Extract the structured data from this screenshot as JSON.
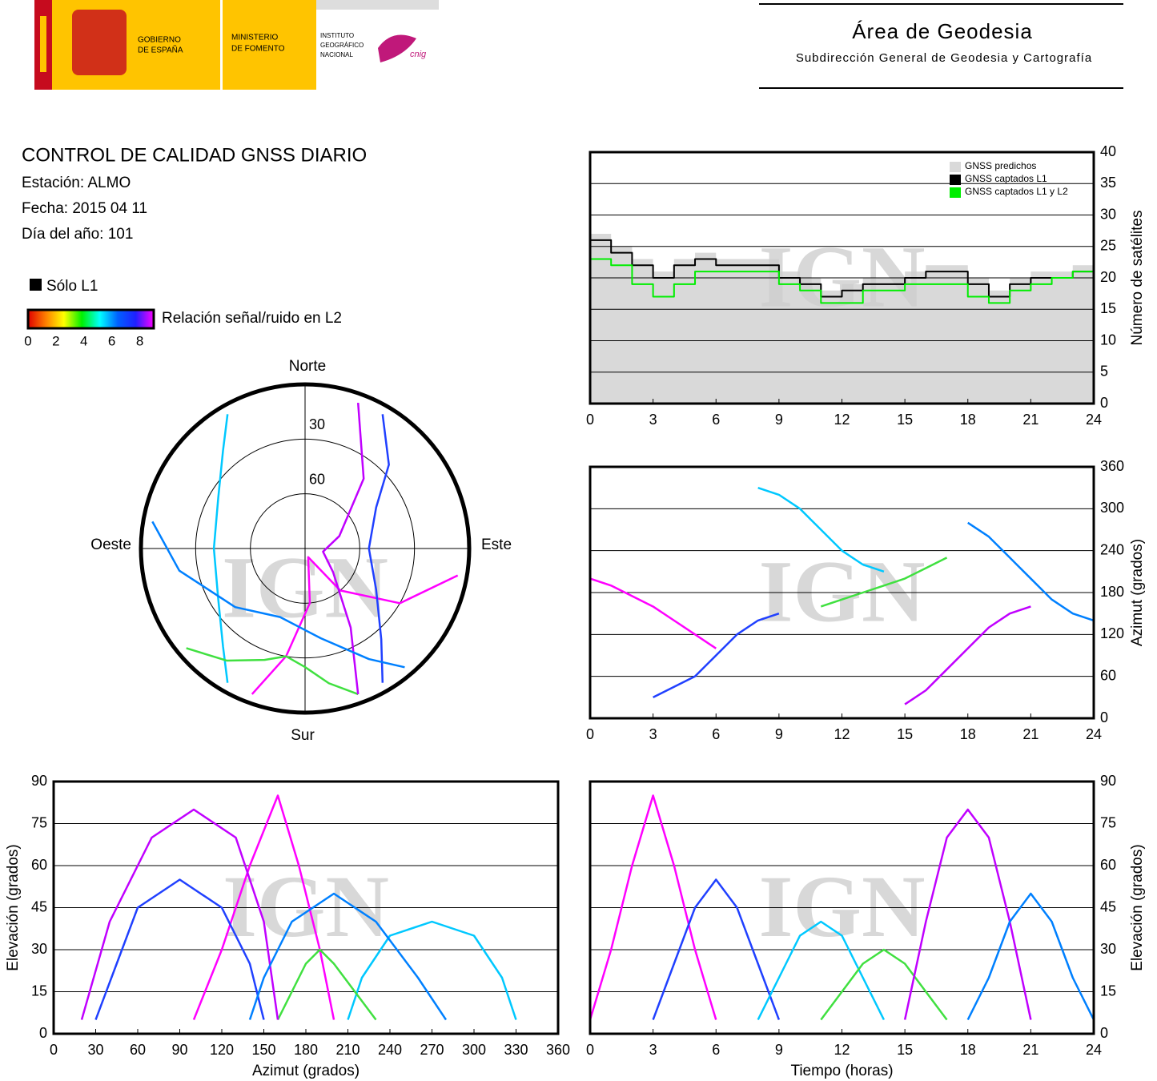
{
  "header": {
    "gobierno": [
      "GOBIERNO",
      "DE ESPAÑA"
    ],
    "ministerio": [
      "MINISTERIO",
      "DE FOMENTO"
    ],
    "instituto": [
      "INSTITUTO",
      "GEOGRÁFICO",
      "NACIONAL"
    ],
    "cnig": "cnig",
    "area": "Área de Geodesia",
    "subdireccion": "Subdirección General de Geodesia y Cartografía"
  },
  "report": {
    "title": "CONTROL DE CALIDAD GNSS DIARIO",
    "lines": [
      "Estación: ALMO",
      "Fecha: 2015 04 11",
      "Día del año: 101"
    ]
  },
  "legend": {
    "solo_l1": "Sólo L1",
    "solo_color": "#000000",
    "snr_label": "Relación señal/ruido en L2",
    "clim": [
      0,
      9
    ],
    "ticks": [
      0,
      2,
      4,
      6,
      8
    ],
    "colors": [
      "#e00000",
      "#ff8000",
      "#ffff00",
      "#00f000",
      "#00ffff",
      "#0060ff",
      "#2020ff",
      "#ff00ff"
    ]
  },
  "watermark": "IGN",
  "chart_data": [
    {
      "type": "line",
      "step": true,
      "grid": true,
      "yaxis_side": "right",
      "legend": "top-right",
      "ylabel": "Número de satélites",
      "xlim": [
        0,
        24
      ],
      "xticks": [
        0,
        3,
        6,
        9,
        12,
        15,
        18,
        21,
        24
      ],
      "ylim": [
        0,
        40
      ],
      "yticks": [
        0,
        5,
        10,
        15,
        20,
        25,
        30,
        35,
        40
      ],
      "x": [
        0,
        1,
        2,
        3,
        4,
        5,
        6,
        7,
        8,
        9,
        10,
        11,
        12,
        13,
        14,
        15,
        16,
        17,
        18,
        19,
        20,
        21,
        22,
        23,
        24
      ],
      "series": [
        {
          "name": "GNSS predichos",
          "color": "#d9d9d9",
          "fill": true,
          "values": [
            27,
            25,
            23,
            21,
            23,
            24,
            23,
            23,
            23,
            21,
            20,
            18,
            19,
            20,
            20,
            21,
            22,
            22,
            20,
            18,
            20,
            21,
            21,
            22,
            23
          ]
        },
        {
          "name": "GNSS captados L1",
          "color": "#000000",
          "values": [
            26,
            24,
            22,
            20,
            22,
            23,
            22,
            22,
            22,
            20,
            19,
            17,
            18,
            19,
            19,
            20,
            21,
            21,
            19,
            17,
            19,
            20,
            20,
            21,
            22
          ]
        },
        {
          "name": "GNSS captados L1 y L2",
          "color": "#00ee00",
          "values": [
            23,
            22,
            19,
            17,
            19,
            21,
            21,
            21,
            21,
            19,
            18,
            16,
            16,
            18,
            18,
            19,
            19,
            19,
            17,
            16,
            18,
            19,
            20,
            21,
            22
          ]
        }
      ]
    },
    {
      "type": "line",
      "grid": true,
      "yaxis_side": "right",
      "ylabel": "Azimut (grados)",
      "xlim": [
        0,
        24
      ],
      "xticks": [
        0,
        3,
        6,
        9,
        12,
        15,
        18,
        21,
        24
      ],
      "ylim": [
        0,
        360
      ],
      "yticks": [
        0,
        60,
        120,
        180,
        240,
        300,
        360
      ],
      "series": [
        {
          "color": "#ff00ff",
          "x": [
            0,
            1,
            2,
            3,
            4,
            5,
            6
          ],
          "values": [
            200,
            190,
            175,
            160,
            140,
            120,
            100
          ]
        },
        {
          "color": "#2040ff",
          "x": [
            3,
            4,
            5,
            6,
            7,
            8,
            9
          ],
          "values": [
            30,
            45,
            60,
            90,
            120,
            140,
            150
          ]
        },
        {
          "color": "#00c8ff",
          "x": [
            8,
            9,
            10,
            11,
            12,
            13,
            14
          ],
          "values": [
            330,
            320,
            300,
            270,
            240,
            220,
            210
          ]
        },
        {
          "color": "#40e040",
          "x": [
            11,
            12,
            13,
            14,
            15,
            16,
            17
          ],
          "values": [
            160,
            170,
            180,
            190,
            200,
            215,
            230
          ]
        },
        {
          "color": "#c000ff",
          "x": [
            15,
            16,
            17,
            18,
            19,
            20,
            21
          ],
          "values": [
            20,
            40,
            70,
            100,
            130,
            150,
            160
          ]
        },
        {
          "color": "#0080ff",
          "x": [
            18,
            19,
            20,
            21,
            22,
            23,
            24
          ],
          "values": [
            280,
            260,
            230,
            200,
            170,
            150,
            140
          ]
        }
      ]
    },
    {
      "type": "polar",
      "directions": [
        "Norte",
        "Este",
        "Sur",
        "Oeste"
      ],
      "rlim": [
        90,
        0
      ],
      "rticks": [
        30,
        60
      ],
      "series": [
        {
          "color": "#ff00ff",
          "azimuth": [
            200,
            190,
            175,
            160,
            140,
            120,
            100
          ],
          "elevation": [
            5,
            30,
            60,
            85,
            60,
            30,
            5
          ]
        },
        {
          "color": "#2040ff",
          "azimuth": [
            30,
            45,
            60,
            90,
            120,
            140,
            150
          ],
          "elevation": [
            5,
            25,
            45,
            55,
            45,
            25,
            5
          ]
        },
        {
          "color": "#00c8ff",
          "azimuth": [
            330,
            320,
            300,
            270,
            240,
            220,
            210
          ],
          "elevation": [
            5,
            20,
            35,
            40,
            35,
            20,
            5
          ]
        },
        {
          "color": "#40e040",
          "azimuth": [
            160,
            170,
            180,
            190,
            200,
            215,
            230
          ],
          "elevation": [
            5,
            15,
            25,
            30,
            25,
            15,
            5
          ]
        },
        {
          "color": "#c000ff",
          "azimuth": [
            20,
            40,
            70,
            100,
            130,
            150,
            160
          ],
          "elevation": [
            5,
            40,
            70,
            80,
            70,
            40,
            5
          ]
        },
        {
          "color": "#0080ff",
          "azimuth": [
            280,
            260,
            230,
            200,
            170,
            150,
            140
          ],
          "elevation": [
            5,
            20,
            40,
            50,
            40,
            20,
            5
          ]
        }
      ]
    },
    {
      "type": "line",
      "grid": true,
      "yaxis_side": "left",
      "xlabel": "Azimut (grados)",
      "ylabel": "Elevación (grados)",
      "xlim": [
        0,
        360
      ],
      "xticks": [
        0,
        30,
        60,
        90,
        120,
        150,
        180,
        210,
        240,
        270,
        300,
        330,
        360
      ],
      "ylim": [
        0,
        90
      ],
      "yticks": [
        0,
        15,
        30,
        45,
        60,
        75,
        90
      ],
      "series": [
        {
          "color": "#ff00ff",
          "x": [
            200,
            190,
            175,
            160,
            140,
            120,
            100
          ],
          "values": [
            5,
            30,
            60,
            85,
            60,
            30,
            5
          ]
        },
        {
          "color": "#2040ff",
          "x": [
            30,
            45,
            60,
            90,
            120,
            140,
            150
          ],
          "values": [
            5,
            25,
            45,
            55,
            45,
            25,
            5
          ]
        },
        {
          "color": "#00c8ff",
          "x": [
            330,
            320,
            300,
            270,
            240,
            220,
            210
          ],
          "values": [
            5,
            20,
            35,
            40,
            35,
            20,
            5
          ]
        },
        {
          "color": "#40e040",
          "x": [
            160,
            170,
            180,
            190,
            200,
            215,
            230
          ],
          "values": [
            5,
            15,
            25,
            30,
            25,
            15,
            5
          ]
        },
        {
          "color": "#c000ff",
          "x": [
            20,
            40,
            70,
            100,
            130,
            150,
            160
          ],
          "values": [
            5,
            40,
            70,
            80,
            70,
            40,
            5
          ]
        },
        {
          "color": "#0080ff",
          "x": [
            280,
            260,
            230,
            200,
            170,
            150,
            140
          ],
          "values": [
            5,
            20,
            40,
            50,
            40,
            20,
            5
          ]
        }
      ]
    },
    {
      "type": "line",
      "grid": true,
      "yaxis_side": "right",
      "xlabel": "Tiempo (horas)",
      "ylabel": "Elevación (grados)",
      "xlim": [
        0,
        24
      ],
      "xticks": [
        0,
        3,
        6,
        9,
        12,
        15,
        18,
        21,
        24
      ],
      "ylim": [
        0,
        90
      ],
      "yticks": [
        0,
        15,
        30,
        45,
        60,
        75,
        90
      ],
      "series": [
        {
          "color": "#ff00ff",
          "x": [
            0,
            1,
            2,
            3,
            4,
            5,
            6
          ],
          "values": [
            5,
            30,
            60,
            85,
            60,
            30,
            5
          ]
        },
        {
          "color": "#2040ff",
          "x": [
            3,
            4,
            5,
            6,
            7,
            8,
            9
          ],
          "values": [
            5,
            25,
            45,
            55,
            45,
            25,
            5
          ]
        },
        {
          "color": "#00c8ff",
          "x": [
            8,
            9,
            10,
            11,
            12,
            13,
            14
          ],
          "values": [
            5,
            20,
            35,
            40,
            35,
            20,
            5
          ]
        },
        {
          "color": "#40e040",
          "x": [
            11,
            12,
            13,
            14,
            15,
            16,
            17
          ],
          "values": [
            5,
            15,
            25,
            30,
            25,
            15,
            5
          ]
        },
        {
          "color": "#c000ff",
          "x": [
            15,
            16,
            17,
            18,
            19,
            20,
            21
          ],
          "values": [
            5,
            40,
            70,
            80,
            70,
            40,
            5
          ]
        },
        {
          "color": "#0080ff",
          "x": [
            18,
            19,
            20,
            21,
            22,
            23,
            24
          ],
          "values": [
            5,
            20,
            40,
            50,
            40,
            20,
            5
          ]
        }
      ]
    }
  ]
}
